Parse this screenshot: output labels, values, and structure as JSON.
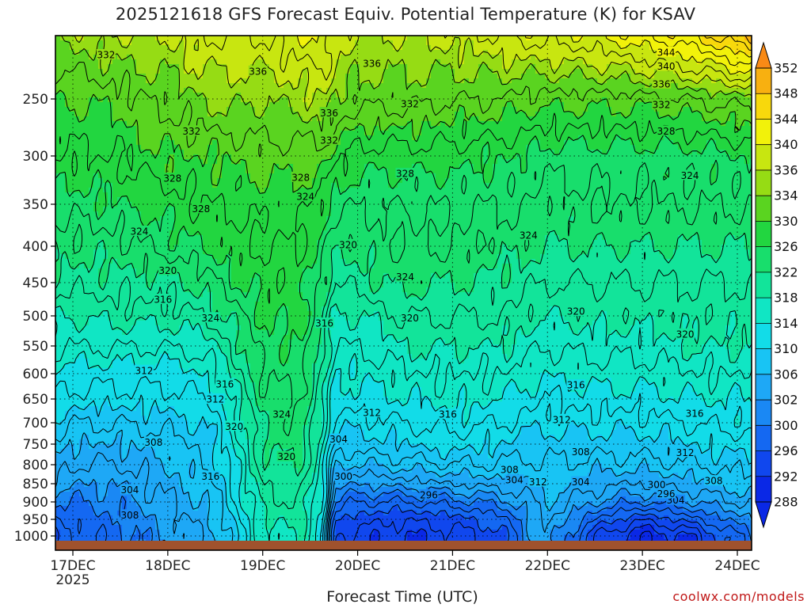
{
  "chart_data": {
    "type": "heatmap",
    "title": "2025121618 GFS Forecast Equiv. Potential Temperature (K) for KSAV",
    "xlabel": "Forecast Time (UTC)",
    "ylabel": "",
    "y_scale": "pressure (log-like, inverted)",
    "ylim": [
      1030,
      200
    ],
    "y_ticks": [
      250,
      300,
      350,
      400,
      450,
      500,
      550,
      600,
      650,
      700,
      750,
      800,
      850,
      900,
      950,
      1000
    ],
    "x_ticks": [
      {
        "label": "17DEC",
        "day": 17
      },
      {
        "label": "18DEC",
        "day": 18
      },
      {
        "label": "19DEC",
        "day": 19
      },
      {
        "label": "20DEC",
        "day": 20
      },
      {
        "label": "21DEC",
        "day": 21
      },
      {
        "label": "22DEC",
        "day": 22
      },
      {
        "label": "23DEC",
        "day": 23
      },
      {
        "label": "24DEC",
        "day": 24
      }
    ],
    "x_year_label": "2025",
    "xlim_days": [
      16.75,
      24.25
    ],
    "grid": true,
    "colorbar": {
      "levels": [
        288,
        292,
        296,
        300,
        302,
        306,
        310,
        314,
        318,
        322,
        326,
        330,
        334,
        336,
        340,
        344,
        348,
        352
      ],
      "colors": [
        "#0a28e6",
        "#1047ee",
        "#1468f2",
        "#1a88f4",
        "#1ea8f6",
        "#18c4f4",
        "#12dce8",
        "#10e6c4",
        "#12e49a",
        "#18de6c",
        "#22d640",
        "#5ad420",
        "#96dc14",
        "#c8e610",
        "#f2f20a",
        "#f8d80c",
        "#f8b010",
        "#f88a16"
      ]
    },
    "field_grid": {
      "times": [
        16.75,
        17.0,
        17.5,
        18.0,
        18.4,
        18.6,
        19.0,
        19.4,
        19.65,
        19.75,
        20.0,
        20.5,
        21.0,
        21.5,
        21.75,
        22.0,
        22.5,
        22.75,
        23.0,
        23.5,
        24.0,
        24.25
      ],
      "pressures": [
        200,
        250,
        300,
        350,
        400,
        450,
        500,
        550,
        600,
        650,
        700,
        750,
        800,
        850,
        900,
        950,
        1000,
        1030
      ],
      "values": [
        [
          334,
          335,
          336,
          336,
          338,
          338,
          338,
          340,
          340,
          338,
          336,
          336,
          337,
          338,
          339,
          339,
          340,
          341,
          342,
          344,
          348,
          350
        ],
        [
          330,
          330,
          331,
          333,
          334,
          335,
          334,
          335,
          336,
          334,
          333,
          333,
          332,
          332,
          331,
          331,
          331,
          331,
          331,
          332,
          333,
          333
        ],
        [
          328,
          328,
          328,
          330,
          330,
          330,
          331,
          331,
          331,
          329,
          327,
          327,
          327,
          326,
          326,
          325,
          325,
          325,
          325,
          325,
          326,
          326
        ],
        [
          325,
          325,
          326,
          327,
          328,
          328,
          329,
          329,
          327,
          325,
          324,
          324,
          324,
          324,
          324,
          323,
          324,
          324,
          324,
          324,
          324,
          324
        ],
        [
          323,
          323,
          323,
          325,
          326,
          327,
          328,
          328,
          325,
          322,
          323,
          324,
          324,
          323,
          323,
          322,
          322,
          322,
          322,
          322,
          322,
          322
        ],
        [
          321,
          321,
          321,
          321,
          323,
          325,
          327,
          327,
          323,
          320,
          321,
          323,
          322,
          321,
          321,
          320,
          320,
          320,
          320,
          320,
          320,
          320
        ],
        [
          318,
          318,
          319,
          319,
          320,
          322,
          326,
          327,
          322,
          317,
          318,
          320,
          320,
          320,
          319,
          318,
          319,
          319,
          319,
          319,
          319,
          319
        ],
        [
          316,
          316,
          316,
          316,
          317,
          319,
          325,
          326,
          320,
          316,
          316,
          318,
          318,
          318,
          317,
          316,
          317,
          317,
          317,
          318,
          318,
          318
        ],
        [
          314,
          313,
          313,
          313,
          314,
          317,
          324,
          325,
          319,
          314,
          314,
          316,
          316,
          316,
          315,
          314,
          315,
          315,
          315,
          316,
          316,
          316
        ],
        [
          312,
          311,
          311,
          311,
          312,
          315,
          323,
          324,
          318,
          313,
          313,
          314,
          315,
          314,
          313,
          312,
          313,
          313,
          313,
          314,
          314,
          314
        ],
        [
          310,
          308,
          308,
          309,
          310,
          313,
          322,
          324,
          317,
          311,
          311,
          312,
          313,
          312,
          311,
          311,
          311,
          311,
          311,
          312,
          313,
          313
        ],
        [
          308,
          306,
          306,
          307,
          309,
          312,
          322,
          323,
          316,
          309,
          309,
          310,
          311,
          310,
          309,
          309,
          309,
          309,
          309,
          310,
          311,
          311
        ],
        [
          306,
          304,
          304,
          306,
          308,
          311,
          321,
          322,
          315,
          306,
          306,
          307,
          308,
          308,
          307,
          308,
          307,
          307,
          307,
          308,
          309,
          309
        ],
        [
          304,
          302,
          302,
          305,
          307,
          310,
          320,
          321,
          314,
          303,
          302,
          303,
          304,
          305,
          305,
          307,
          305,
          304,
          304,
          305,
          307,
          307
        ],
        [
          300,
          300,
          301,
          304,
          306,
          309,
          319,
          320,
          313,
          300,
          298,
          298,
          299,
          301,
          303,
          306,
          302,
          301,
          300,
          302,
          304,
          305
        ],
        [
          298,
          299,
          300,
          303,
          305,
          308,
          318,
          319,
          312,
          296,
          295,
          294,
          295,
          297,
          301,
          305,
          298,
          296,
          294,
          297,
          301,
          302
        ],
        [
          296,
          298,
          299,
          302,
          304,
          307,
          317,
          318,
          311,
          294,
          293,
          292,
          293,
          295,
          300,
          304,
          294,
          292,
          290,
          292,
          298,
          300
        ],
        [
          296,
          298,
          299,
          302,
          304,
          307,
          317,
          318,
          311,
          294,
          293,
          292,
          293,
          295,
          300,
          304,
          294,
          292,
          290,
          292,
          298,
          300
        ]
      ]
    },
    "contour_levels": [
      288,
      290,
      292,
      294,
      296,
      298,
      300,
      302,
      304,
      306,
      308,
      310,
      312,
      314,
      316,
      318,
      320,
      322,
      324,
      326,
      328,
      330,
      332,
      334,
      336,
      338,
      340,
      342,
      344,
      346,
      348
    ],
    "contour_labels": [
      {
        "text": "344",
        "t": 23.25,
        "p": 213
      },
      {
        "text": "340",
        "t": 23.25,
        "p": 224
      },
      {
        "text": "336",
        "t": 23.2,
        "p": 238
      },
      {
        "text": "332",
        "t": 23.2,
        "p": 255
      },
      {
        "text": "328",
        "t": 23.25,
        "p": 278
      },
      {
        "text": "324",
        "t": 23.5,
        "p": 320
      },
      {
        "text": "336",
        "t": 20.15,
        "p": 222
      },
      {
        "text": "332",
        "t": 20.55,
        "p": 254
      },
      {
        "text": "328",
        "t": 20.5,
        "p": 318
      },
      {
        "text": "324",
        "t": 21.8,
        "p": 387
      },
      {
        "text": "320",
        "t": 22.3,
        "p": 493
      },
      {
        "text": "320",
        "t": 20.55,
        "p": 503
      },
      {
        "text": "320",
        "t": 23.45,
        "p": 530
      },
      {
        "text": "324",
        "t": 20.5,
        "p": 442
      },
      {
        "text": "320",
        "t": 19.9,
        "p": 398
      },
      {
        "text": "316",
        "t": 19.65,
        "p": 512
      },
      {
        "text": "316",
        "t": 22.3,
        "p": 622
      },
      {
        "text": "316",
        "t": 20.95,
        "p": 682
      },
      {
        "text": "316",
        "t": 23.55,
        "p": 680
      },
      {
        "text": "312",
        "t": 20.15,
        "p": 678
      },
      {
        "text": "312",
        "t": 22.15,
        "p": 693
      },
      {
        "text": "312",
        "t": 23.45,
        "p": 770
      },
      {
        "text": "312",
        "t": 21.9,
        "p": 845
      },
      {
        "text": "308",
        "t": 22.35,
        "p": 768
      },
      {
        "text": "308",
        "t": 21.6,
        "p": 812
      },
      {
        "text": "308",
        "t": 23.75,
        "p": 842
      },
      {
        "text": "304",
        "t": 19.8,
        "p": 738
      },
      {
        "text": "304",
        "t": 21.65,
        "p": 840
      },
      {
        "text": "304",
        "t": 22.35,
        "p": 845
      },
      {
        "text": "304",
        "t": 23.35,
        "p": 895
      },
      {
        "text": "300",
        "t": 19.85,
        "p": 830
      },
      {
        "text": "300",
        "t": 23.15,
        "p": 852
      },
      {
        "text": "296",
        "t": 20.75,
        "p": 880
      },
      {
        "text": "296",
        "t": 23.25,
        "p": 877
      },
      {
        "text": "332",
        "t": 17.35,
        "p": 215
      },
      {
        "text": "336",
        "t": 18.95,
        "p": 228
      },
      {
        "text": "336",
        "t": 19.7,
        "p": 262
      },
      {
        "text": "332",
        "t": 19.7,
        "p": 286
      },
      {
        "text": "332",
        "t": 18.25,
        "p": 278
      },
      {
        "text": "328",
        "t": 18.05,
        "p": 323
      },
      {
        "text": "328",
        "t": 19.4,
        "p": 322
      },
      {
        "text": "328",
        "t": 18.35,
        "p": 355
      },
      {
        "text": "324",
        "t": 19.45,
        "p": 342
      },
      {
        "text": "324",
        "t": 17.7,
        "p": 382
      },
      {
        "text": "320",
        "t": 18.0,
        "p": 433
      },
      {
        "text": "316",
        "t": 17.95,
        "p": 475
      },
      {
        "text": "324",
        "t": 18.45,
        "p": 503
      },
      {
        "text": "324",
        "t": 19.2,
        "p": 682
      },
      {
        "text": "312",
        "t": 17.75,
        "p": 594
      },
      {
        "text": "316",
        "t": 18.6,
        "p": 620
      },
      {
        "text": "312",
        "t": 18.5,
        "p": 650
      },
      {
        "text": "320",
        "t": 18.7,
        "p": 708
      },
      {
        "text": "308",
        "t": 17.85,
        "p": 745
      },
      {
        "text": "320",
        "t": 19.25,
        "p": 780
      },
      {
        "text": "316",
        "t": 18.45,
        "p": 830
      },
      {
        "text": "304",
        "t": 17.6,
        "p": 866
      },
      {
        "text": "308",
        "t": 17.6,
        "p": 937
      }
    ],
    "ground_color": "#a0522d"
  }
}
